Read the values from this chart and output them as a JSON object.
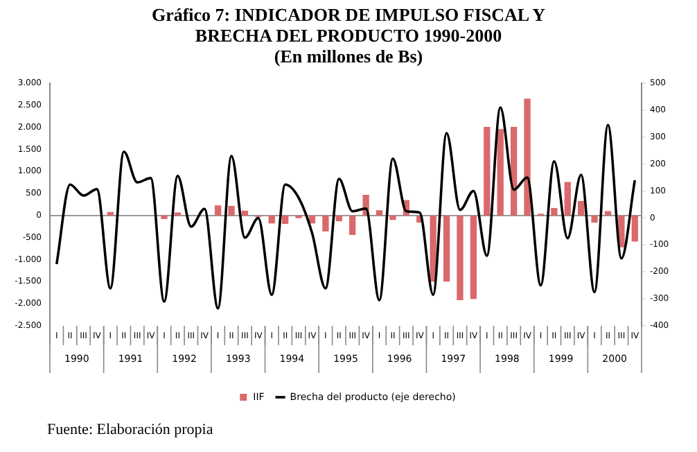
{
  "chart_data": {
    "type": "bar",
    "title": "Gráfico 7: INDICADOR DE IMPULSO FISCAL Y BRECHA DEL PRODUCTO 1990-2000",
    "subtitle": "(En millones de Bs)",
    "categories": [
      "I",
      "II",
      "III",
      "IV",
      "I",
      "II",
      "III",
      "IV",
      "I",
      "II",
      "III",
      "IV",
      "I",
      "II",
      "III",
      "IV",
      "I",
      "II",
      "III",
      "IV",
      "I",
      "II",
      "III",
      "IV",
      "I",
      "II",
      "III",
      "IV",
      "I",
      "II",
      "III",
      "IV",
      "I",
      "II",
      "III",
      "IV",
      "I",
      "II",
      "III",
      "IV",
      "I",
      "II",
      "III",
      "IV"
    ],
    "series": [
      {
        "name": "IIF",
        "color": "#d9696b",
        "values": [
          0,
          0,
          0,
          0,
          80,
          0,
          0,
          0,
          -80,
          70,
          0,
          0,
          230,
          220,
          110,
          -30,
          -180,
          -190,
          -60,
          -180,
          -360,
          -130,
          -440,
          470,
          120,
          -100,
          350,
          -160,
          -1500,
          -1500,
          -1920,
          -1890,
          2010,
          1960,
          2010,
          2650,
          40,
          170,
          760,
          330,
          -160,
          100,
          -720,
          -590
        ]
      },
      {
        "name": "Brecha del producto (eje derecho)",
        "type": "line",
        "axis": "y2",
        "color": "#000000",
        "values": [
          -171,
          124,
          83,
          107,
          -261,
          246,
          132,
          148,
          -310,
          156,
          -32,
          34,
          -335,
          230,
          -73,
          0,
          -285,
          124,
          75,
          -56,
          -261,
          145,
          25,
          35,
          -305,
          220,
          25,
          20,
          -285,
          315,
          30,
          100,
          -140,
          410,
          105,
          150,
          -250,
          210,
          -75,
          160,
          -275,
          345,
          -150,
          140
        ]
      }
    ],
    "ylim": [
      -2500,
      3000
    ],
    "yticks": [
      {
        "value": -2500,
        "label": "-2.500"
      },
      {
        "value": -2000,
        "label": "-2.000"
      },
      {
        "value": -1500,
        "label": "-1.500"
      },
      {
        "value": -1000,
        "label": "-1.000"
      },
      {
        "value": -500,
        "label": "-500"
      },
      0,
      {
        "value": 500,
        "label": "500"
      },
      {
        "value": 1000,
        "label": "1.000"
      },
      {
        "value": 1500,
        "label": "1.500"
      },
      {
        "value": 2000,
        "label": "2.000"
      },
      {
        "value": 2500,
        "label": "2.500"
      },
      {
        "value": 3000,
        "label": "3.000"
      }
    ],
    "y2lim": [
      -400,
      500
    ],
    "y2ticks": [
      -400,
      -300,
      -200,
      -100,
      0,
      100,
      200,
      300,
      400,
      500
    ],
    "grid": false,
    "legend": "bottom",
    "ref_lines": [
      {
        "axis": "y",
        "value": 0,
        "color": "#999999"
      }
    ],
    "annotations": [
      "1990",
      "1991",
      "1992",
      "1993",
      "1994",
      "1995",
      "1996",
      "1997",
      "1998",
      "1999",
      "2000",
      "Fuente: Elaboración propia"
    ]
  }
}
